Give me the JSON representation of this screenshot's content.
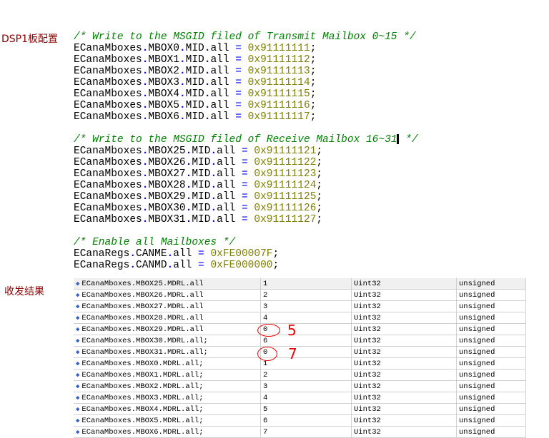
{
  "labels": {
    "config": "DSP1板配置",
    "result": "收发结果"
  },
  "code": {
    "comment1": "/* Write to the MSGID filed of Transmit Mailbox 0~15 */",
    "tx": [
      {
        "obj": "ECanaMboxes",
        "mbox": "MBOX0",
        "reg": "MID",
        "field": "all",
        "value": "0x91111111"
      },
      {
        "obj": "ECanaMboxes",
        "mbox": "MBOX1",
        "reg": "MID",
        "field": "all",
        "value": "0x91111112"
      },
      {
        "obj": "ECanaMboxes",
        "mbox": "MBOX2",
        "reg": "MID",
        "field": "all",
        "value": "0x91111113"
      },
      {
        "obj": "ECanaMboxes",
        "mbox": "MBOX3",
        "reg": "MID",
        "field": "all",
        "value": "0x91111114"
      },
      {
        "obj": "ECanaMboxes",
        "mbox": "MBOX4",
        "reg": "MID",
        "field": "all",
        "value": "0x91111115"
      },
      {
        "obj": "ECanaMboxes",
        "mbox": "MBOX5",
        "reg": "MID",
        "field": "all",
        "value": "0x91111116"
      },
      {
        "obj": "ECanaMboxes",
        "mbox": "MBOX6",
        "reg": "MID",
        "field": "all",
        "value": "0x91111117"
      }
    ],
    "comment2a": "/* Write to the MSGID filed of Receive Mailbox 16~31",
    "comment2b": " */",
    "rx": [
      {
        "obj": "ECanaMboxes",
        "mbox": "MBOX25",
        "reg": "MID",
        "field": "all",
        "value": "0x91111121"
      },
      {
        "obj": "ECanaMboxes",
        "mbox": "MBOX26",
        "reg": "MID",
        "field": "all",
        "value": "0x91111122"
      },
      {
        "obj": "ECanaMboxes",
        "mbox": "MBOX27",
        "reg": "MID",
        "field": "all",
        "value": "0x91111123"
      },
      {
        "obj": "ECanaMboxes",
        "mbox": "MBOX28",
        "reg": "MID",
        "field": "all",
        "value": "0x91111124"
      },
      {
        "obj": "ECanaMboxes",
        "mbox": "MBOX29",
        "reg": "MID",
        "field": "all",
        "value": "0x91111125"
      },
      {
        "obj": "ECanaMboxes",
        "mbox": "MBOX30",
        "reg": "MID",
        "field": "all",
        "value": "0x91111126"
      },
      {
        "obj": "ECanaMboxes",
        "mbox": "MBOX31",
        "reg": "MID",
        "field": "all",
        "value": "0x91111127"
      }
    ],
    "comment3": "/* Enable all Mailboxes */",
    "en": [
      {
        "obj": "ECanaRegs",
        "mbox": "CANME",
        "field": "all",
        "value": "0xFE00007F"
      },
      {
        "obj": "ECanaRegs",
        "mbox": "CANMD",
        "field": "all",
        "value": "0xFE000000"
      }
    ]
  },
  "watch": [
    {
      "name": "ECanaMboxes.MBOX25.MDRL.all",
      "value": "1",
      "type": "Uint32",
      "radix": "unsigned"
    },
    {
      "name": "ECanaMboxes.MBOX26.MDRL.all",
      "value": "2",
      "type": "Uint32",
      "radix": "unsigned"
    },
    {
      "name": "ECanaMboxes.MBOX27.MDRL.all",
      "value": "3",
      "type": "Uint32",
      "radix": "unsigned"
    },
    {
      "name": "ECanaMboxes.MBOX28.MDRL.all",
      "value": "4",
      "type": "Uint32",
      "radix": "unsigned"
    },
    {
      "name": "ECanaMboxes.MBOX29.MDRL.all",
      "value": "0",
      "type": "Uint32",
      "radix": "unsigned"
    },
    {
      "name": "ECanaMboxes.MBOX30.MDRL.all;",
      "value": "6",
      "type": "Uint32",
      "radix": "unsigned"
    },
    {
      "name": "ECanaMboxes.MBOX31.MDRL.all;",
      "value": "0",
      "type": "Uint32",
      "radix": "unsigned"
    },
    {
      "name": "ECanaMboxes.MBOX0.MDRL.all;",
      "value": "1",
      "type": "Uint32",
      "radix": "unsigned"
    },
    {
      "name": "ECanaMboxes.MBOX1.MDRL.all;",
      "value": "2",
      "type": "Uint32",
      "radix": "unsigned"
    },
    {
      "name": "ECanaMboxes.MBOX2.MDRL.all;",
      "value": "3",
      "type": "Uint32",
      "radix": "unsigned"
    },
    {
      "name": "ECanaMboxes.MBOX3.MDRL.all;",
      "value": "4",
      "type": "Uint32",
      "radix": "unsigned"
    },
    {
      "name": "ECanaMboxes.MBOX4.MDRL.all;",
      "value": "5",
      "type": "Uint32",
      "radix": "unsigned"
    },
    {
      "name": "ECanaMboxes.MBOX5.MDRL.all;",
      "value": "6",
      "type": "Uint32",
      "radix": "unsigned"
    },
    {
      "name": "ECanaMboxes.MBOX6.MDRL.all;",
      "value": "7",
      "type": "Uint32",
      "radix": "unsigned"
    }
  ],
  "annotations": {
    "a1": "5",
    "a2": "7",
    "color": "#ee0000"
  }
}
